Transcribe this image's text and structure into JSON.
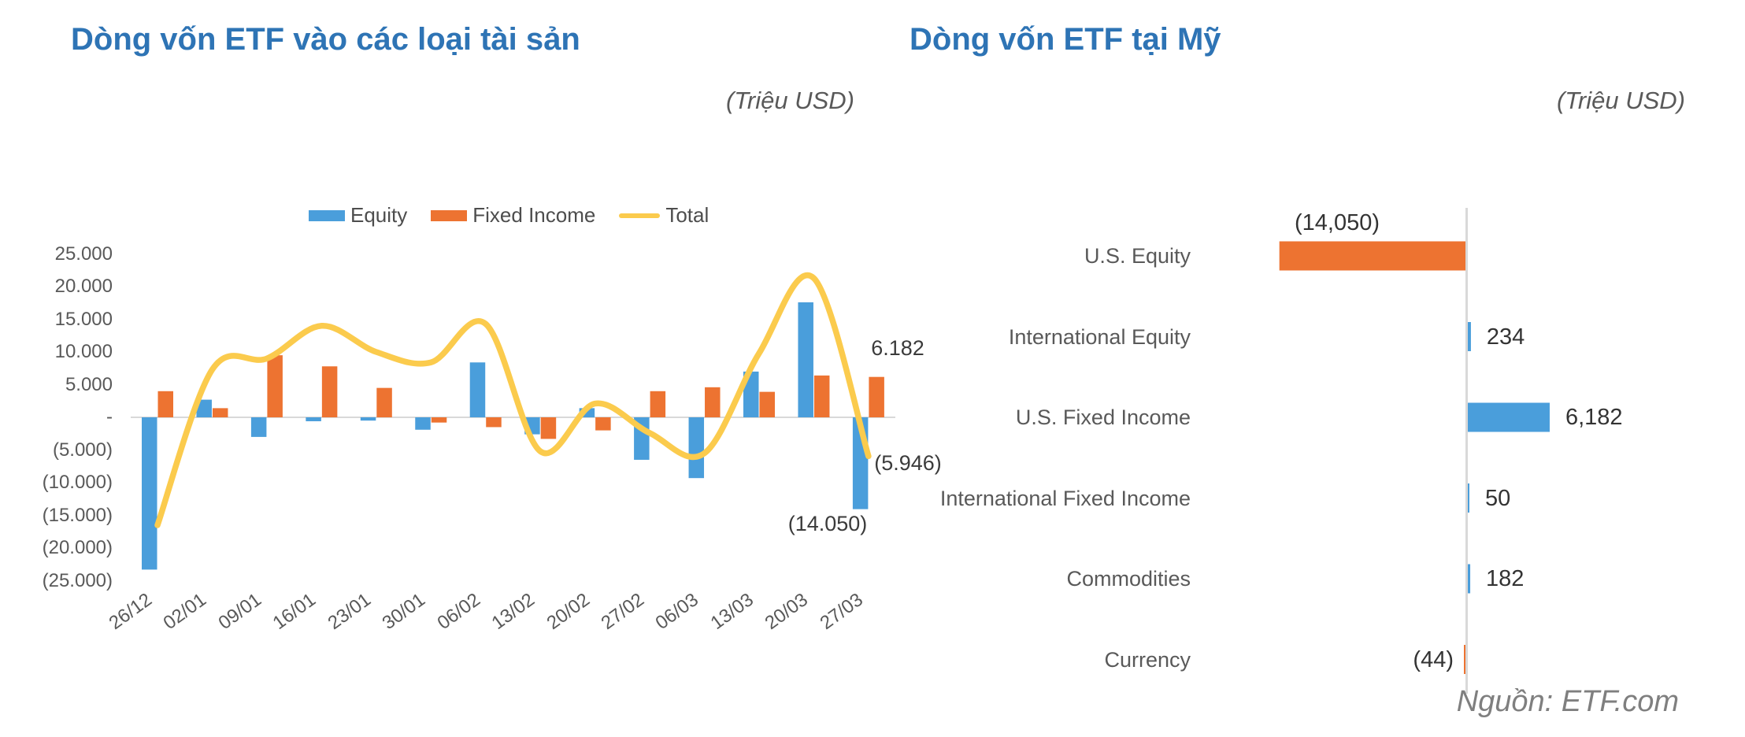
{
  "chart_data": [
    {
      "type": "bar",
      "subtype": "combo-bar-line",
      "title": "Dòng vốn ETF vào các loại tài sản",
      "subtitle": "(Triệu USD)",
      "categories": [
        "26/12",
        "02/01",
        "09/01",
        "16/01",
        "23/01",
        "30/01",
        "06/02",
        "13/02",
        "20/02",
        "27/02",
        "06/03",
        "13/03",
        "20/03",
        "27/03"
      ],
      "series": [
        {
          "name": "Equity",
          "type": "bar",
          "color": "#4A9EDB",
          "values": [
            -23300,
            2700,
            -3000,
            -600,
            -500,
            -1900,
            8400,
            -2600,
            1400,
            -6500,
            -9300,
            7000,
            17600,
            -14050
          ]
        },
        {
          "name": "Fixed Income",
          "type": "bar",
          "color": "#ED7331",
          "values": [
            4000,
            1400,
            9500,
            7800,
            4500,
            -800,
            -1500,
            -3300,
            -2000,
            4000,
            4600,
            3900,
            6400,
            6182
          ]
        },
        {
          "name": "Total",
          "type": "line",
          "color": "#FBCB4D",
          "values": [
            -16500,
            7300,
            9000,
            14000,
            10000,
            8400,
            14300,
            -5200,
            2100,
            -2400,
            -5500,
            9800,
            21300,
            -5946
          ]
        }
      ],
      "data_labels": [
        {
          "series": "Fixed Income",
          "category": "27/03",
          "text": "6.182"
        },
        {
          "series": "Total",
          "category": "27/03",
          "text": "(5.946)"
        },
        {
          "series": "Equity",
          "category": "27/03",
          "text": "(14.050)"
        }
      ],
      "ylim": [
        -25000,
        25000
      ],
      "y_tick_step": 5000,
      "y_tick_labels": [
        "25.000",
        "20.000",
        "15.000",
        "10.000",
        "5.000",
        "-",
        "(5.000)",
        "(10.000)",
        "(15.000)",
        "(20.000)",
        "(25.000)"
      ],
      "legend_position": "top",
      "grid": false
    },
    {
      "type": "bar",
      "orientation": "horizontal",
      "title": "Dòng vốn ETF tại Mỹ",
      "subtitle": "(Triệu USD)",
      "categories": [
        "U.S. Equity",
        "International Equity",
        "U.S. Fixed Income",
        "International Fixed Income",
        "Commodities",
        "Currency"
      ],
      "values": [
        -14050,
        234,
        6182,
        50,
        182,
        -44
      ],
      "value_labels": [
        "(14,050)",
        "234",
        "6,182",
        "50",
        "182",
        "(44)"
      ],
      "bar_colors": [
        "#ED7331",
        "#4A9EDB",
        "#4A9EDB",
        "#4A9EDB",
        "#4A9EDB",
        "#ED7331"
      ],
      "grid": false,
      "source": "Nguồn: ETF.com"
    }
  ],
  "colors": {
    "equity_blue": "#4A9EDB",
    "fixed_income_orange": "#ED7331",
    "total_yellow": "#FBCB4D",
    "title_blue": "#2E74B5",
    "axis_gray": "#D9D9D9",
    "text_gray": "#595959",
    "value_text": "#333333",
    "source_gray": "#7F7F7F"
  }
}
